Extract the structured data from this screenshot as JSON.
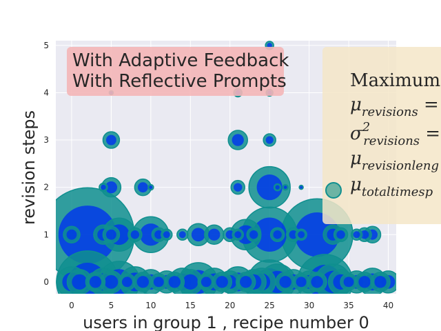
{
  "chart_data": {
    "type": "scatter",
    "title_box": {
      "lines": [
        "With Adaptive Feedback",
        "With Reflective Prompts"
      ],
      "color": "#f4b6b7"
    },
    "xlabel": "users in group 1 , recipe number 0",
    "ylabel": "revision steps",
    "xlim": [
      -2,
      41
    ],
    "ylim": [
      -0.25,
      5.1
    ],
    "xticks": [
      0,
      5,
      10,
      15,
      20,
      25,
      30,
      35,
      40
    ],
    "yticks": [
      0,
      1,
      2,
      3,
      4,
      5
    ],
    "grid": true,
    "background": "#eaeaf2",
    "legend": {
      "placement": "right (clipped)",
      "color": "#f5e6c8",
      "title": "Maximum r",
      "entries": [
        {
          "symbol": "μ",
          "sub": "revisions",
          "suffix": " ="
        },
        {
          "symbol": "σ",
          "sup": "2",
          "sub": "revisions",
          "suffix": " ="
        },
        {
          "symbol": "μ",
          "sub": "revisionleng",
          "suffix": ""
        },
        {
          "symbol": "μ",
          "sub": "totaltimesp",
          "suffix": ""
        }
      ]
    },
    "series": [
      {
        "color_outer": "#0f8f8f",
        "color_inner": "#0033ee",
        "points": [
          {
            "x": 0,
            "y": 0,
            "s": 22
          },
          {
            "x": 1,
            "y": 0,
            "s": 18
          },
          {
            "x": 2,
            "y": 0,
            "s": 45
          },
          {
            "x": 3,
            "y": 0,
            "s": 14
          },
          {
            "x": 4,
            "y": 0,
            "s": 20
          },
          {
            "x": 5,
            "y": 0,
            "s": 16
          },
          {
            "x": 6,
            "y": 0,
            "s": 30
          },
          {
            "x": 7,
            "y": 0,
            "s": 12
          },
          {
            "x": 8,
            "y": 0,
            "s": 22
          },
          {
            "x": 9,
            "y": 0,
            "s": 14
          },
          {
            "x": 10,
            "y": 0,
            "s": 18
          },
          {
            "x": 11,
            "y": 0,
            "s": 12
          },
          {
            "x": 12,
            "y": 0,
            "s": 16
          },
          {
            "x": 13,
            "y": 0,
            "s": 14
          },
          {
            "x": 14,
            "y": 0,
            "s": 20
          },
          {
            "x": 15,
            "y": 0,
            "s": 18
          },
          {
            "x": 16,
            "y": 0,
            "s": 28
          },
          {
            "x": 17,
            "y": 0,
            "s": 12
          },
          {
            "x": 18,
            "y": 0,
            "s": 20
          },
          {
            "x": 19,
            "y": 0,
            "s": 14
          },
          {
            "x": 20,
            "y": 0,
            "s": 16
          },
          {
            "x": 21,
            "y": 0,
            "s": 22
          },
          {
            "x": 22,
            "y": 0,
            "s": 14
          },
          {
            "x": 23,
            "y": 0,
            "s": 18
          },
          {
            "x": 24,
            "y": 0,
            "s": 20
          },
          {
            "x": 25,
            "y": 0,
            "s": 32
          },
          {
            "x": 26,
            "y": 0,
            "s": 26
          },
          {
            "x": 27,
            "y": 0,
            "s": 14
          },
          {
            "x": 28,
            "y": 0,
            "s": 18
          },
          {
            "x": 29,
            "y": 0,
            "s": 12
          },
          {
            "x": 30,
            "y": 0,
            "s": 16
          },
          {
            "x": 31,
            "y": 0,
            "s": 14
          },
          {
            "x": 32,
            "y": 0,
            "s": 40
          },
          {
            "x": 33,
            "y": 0,
            "s": 26
          },
          {
            "x": 34,
            "y": 0,
            "s": 18
          },
          {
            "x": 35,
            "y": 0,
            "s": 12
          },
          {
            "x": 36,
            "y": 0,
            "s": 16
          },
          {
            "x": 37,
            "y": 0,
            "s": 14
          },
          {
            "x": 38,
            "y": 0,
            "s": 20
          },
          {
            "x": 39,
            "y": 0,
            "s": 14
          },
          {
            "x": 40,
            "y": 0,
            "s": 16
          },
          {
            "x": 0,
            "y": 1,
            "s": 12
          },
          {
            "x": 2,
            "y": 1,
            "s": 68
          },
          {
            "x": 4,
            "y": 1,
            "s": 14
          },
          {
            "x": 5,
            "y": 1,
            "s": 12
          },
          {
            "x": 6,
            "y": 1,
            "s": 24
          },
          {
            "x": 8,
            "y": 1,
            "s": 10
          },
          {
            "x": 10,
            "y": 1,
            "s": 26
          },
          {
            "x": 11,
            "y": 1,
            "s": 10
          },
          {
            "x": 12,
            "y": 1,
            "s": 8
          },
          {
            "x": 14,
            "y": 1,
            "s": 8
          },
          {
            "x": 16,
            "y": 1,
            "s": 16
          },
          {
            "x": 18,
            "y": 1,
            "s": 14
          },
          {
            "x": 20,
            "y": 1,
            "s": 10
          },
          {
            "x": 21,
            "y": 1,
            "s": 8
          },
          {
            "x": 22,
            "y": 1,
            "s": 22
          },
          {
            "x": 23,
            "y": 1,
            "s": 10
          },
          {
            "x": 25,
            "y": 1,
            "s": 40
          },
          {
            "x": 26,
            "y": 1,
            "s": 10
          },
          {
            "x": 28,
            "y": 1,
            "s": 10
          },
          {
            "x": 29,
            "y": 1,
            "s": 8
          },
          {
            "x": 31,
            "y": 1,
            "s": 52
          },
          {
            "x": 33,
            "y": 1,
            "s": 14
          },
          {
            "x": 34,
            "y": 1,
            "s": 10
          },
          {
            "x": 36,
            "y": 1,
            "s": 8
          },
          {
            "x": 37,
            "y": 1,
            "s": 10
          },
          {
            "x": 38,
            "y": 1,
            "s": 12
          },
          {
            "x": 4,
            "y": 2,
            "s": 6
          },
          {
            "x": 5,
            "y": 2,
            "s": 14
          },
          {
            "x": 9,
            "y": 2,
            "s": 12
          },
          {
            "x": 10,
            "y": 2,
            "s": 4
          },
          {
            "x": 21,
            "y": 2,
            "s": 10
          },
          {
            "x": 25,
            "y": 2,
            "s": 30
          },
          {
            "x": 26,
            "y": 2,
            "s": 5
          },
          {
            "x": 27,
            "y": 2,
            "s": 4
          },
          {
            "x": 29,
            "y": 2,
            "s": 3
          },
          {
            "x": 5,
            "y": 3,
            "s": 12
          },
          {
            "x": 21,
            "y": 3,
            "s": 14
          },
          {
            "x": 25,
            "y": 3,
            "s": 9
          },
          {
            "x": 5,
            "y": 4,
            "s": 3
          },
          {
            "x": 21,
            "y": 4,
            "s": 6
          },
          {
            "x": 25,
            "y": 4,
            "s": 5
          },
          {
            "x": 25,
            "y": 5,
            "s": 6
          }
        ]
      }
    ]
  }
}
